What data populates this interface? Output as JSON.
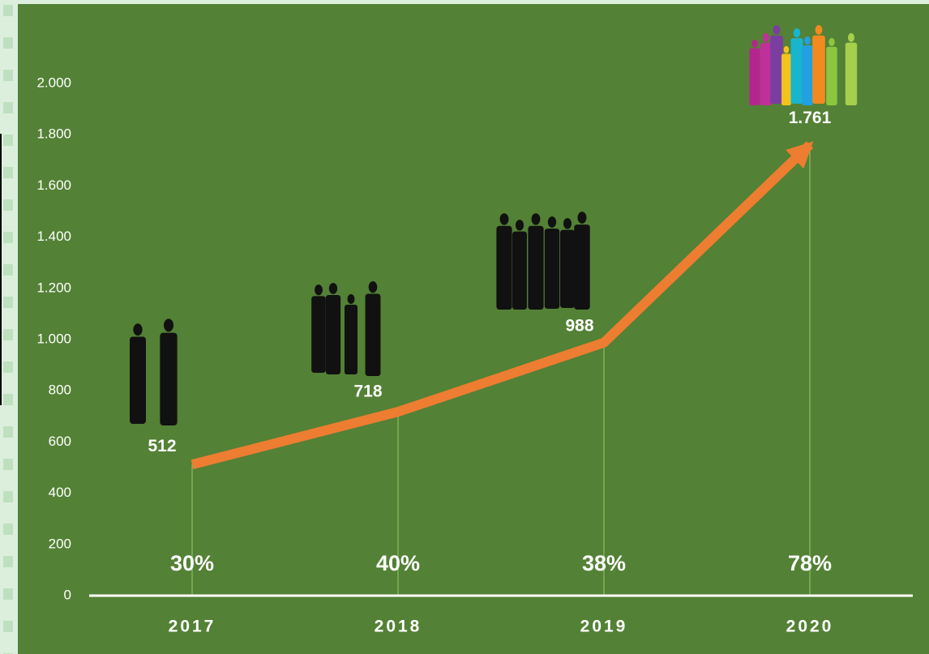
{
  "chart_data": {
    "type": "line",
    "categories": [
      "2017",
      "2018",
      "2019",
      "2020"
    ],
    "values": [
      512,
      718,
      988,
      1761
    ],
    "value_labels": [
      "512",
      "718",
      "988",
      "1.761"
    ],
    "annotations": [
      "30%",
      "40%",
      "38%",
      "78%"
    ],
    "color": "#ED7D31",
    "ylim": [
      0,
      2000
    ],
    "yticks": [
      0,
      200,
      400,
      600,
      800,
      {
        "value": 1000,
        "label": "1.000"
      },
      {
        "value": 1200,
        "label": "1.200"
      },
      {
        "value": 1400,
        "label": "1.400"
      },
      {
        "value": 1600,
        "label": "1.600"
      },
      {
        "value": 1800,
        "label": "1.800"
      },
      {
        "value": 2000,
        "label": "2.000"
      }
    ],
    "grid": false
  }
}
